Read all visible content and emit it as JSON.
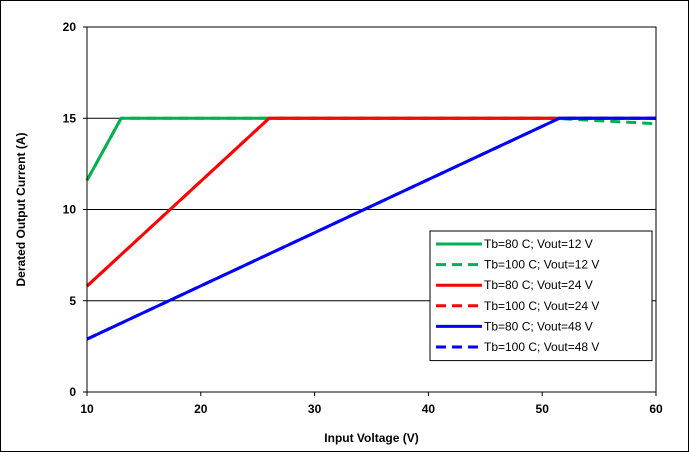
{
  "chart_data": {
    "type": "line",
    "xlabel": "Input Voltage (V)",
    "ylabel": "Derated Output Current (A)",
    "xlim": [
      10,
      60
    ],
    "ylim": [
      0,
      20
    ],
    "xticks": [
      10,
      20,
      30,
      40,
      50,
      60
    ],
    "yticks": [
      0,
      5,
      10,
      15,
      20
    ],
    "xtick_labels": [
      "10",
      "20",
      "30",
      "40",
      "50",
      "60"
    ],
    "ytick_labels": [
      "0",
      "5",
      "10",
      "15",
      "20"
    ],
    "grid": "horizontal",
    "legend_position": "bottom-right",
    "series": [
      {
        "name": "Tb=80 C; Vout=12 V",
        "color": "#00b050",
        "dash": "solid",
        "x": [
          10,
          13,
          60
        ],
        "y": [
          11.6,
          15,
          15
        ]
      },
      {
        "name": "Tb=100 C; Vout=12 V",
        "color": "#00b050",
        "dash": "dashed",
        "x": [
          10,
          13,
          51,
          60
        ],
        "y": [
          11.6,
          15,
          15,
          14.7
        ]
      },
      {
        "name": "Tb=80 C; Vout=24 V",
        "color": "#ff0000",
        "dash": "solid",
        "x": [
          10,
          26,
          60
        ],
        "y": [
          5.8,
          15,
          15
        ]
      },
      {
        "name": "Tb=100 C; Vout=24 V",
        "color": "#ff0000",
        "dash": "dashed",
        "x": [
          10,
          26,
          51
        ],
        "y": [
          5.8,
          15,
          15
        ]
      },
      {
        "name": "Tb=80 C; Vout=48 V",
        "color": "#0000ff",
        "dash": "solid",
        "x": [
          10,
          51.5,
          60
        ],
        "y": [
          2.9,
          15,
          15
        ]
      },
      {
        "name": "Tb=100 C; Vout=48 V",
        "color": "#0000ff",
        "dash": "dashed",
        "x": [
          10,
          51.5,
          60
        ],
        "y": [
          2.9,
          15,
          15
        ]
      }
    ]
  }
}
